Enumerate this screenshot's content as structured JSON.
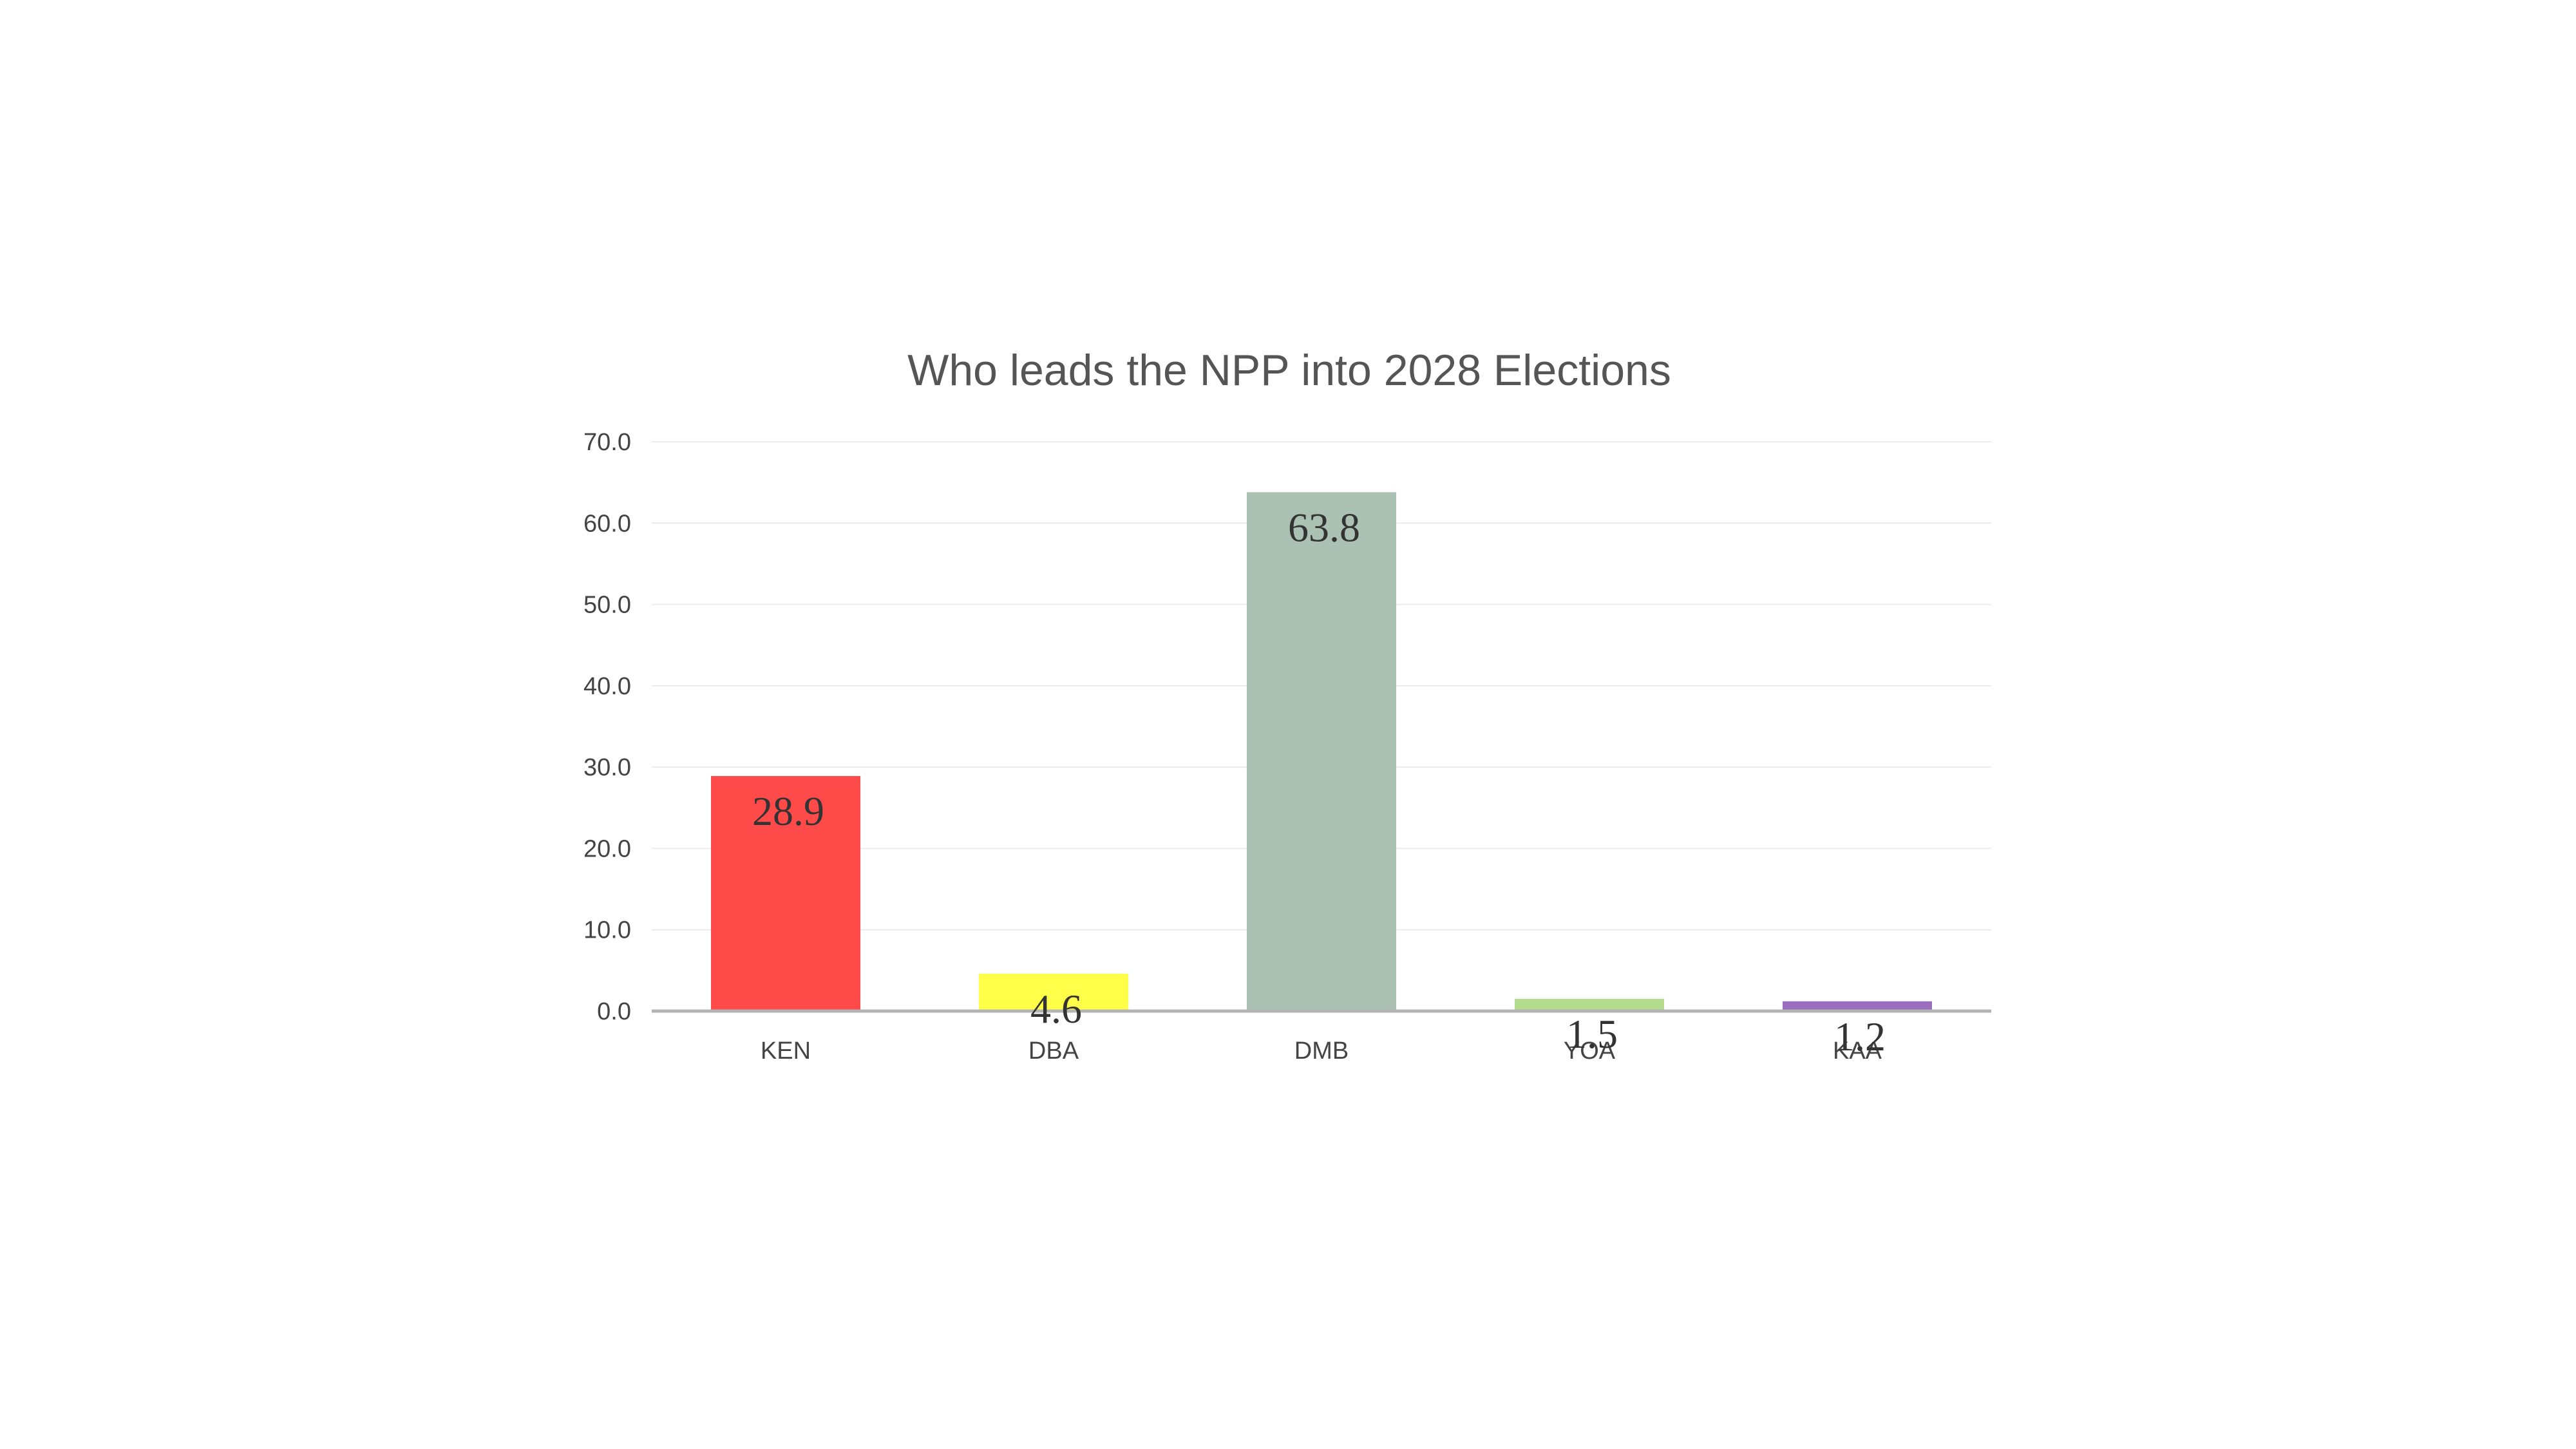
{
  "chart_data": {
    "type": "bar",
    "title": "Who leads the NPP into 2028 Elections",
    "xlabel": "",
    "ylabel": "",
    "categories": [
      "KEN",
      "DBA",
      "DMB",
      "YOA",
      "KAA"
    ],
    "values": [
      28.9,
      4.6,
      63.8,
      1.5,
      1.2
    ],
    "data_labels": [
      "28.9",
      "4.6",
      "63.8",
      "1.5",
      "1.2"
    ],
    "colors": [
      "#ff4a4a",
      "#ffff4a",
      "#abc1b3",
      "#b3dc8c",
      "#9b6ec0"
    ],
    "ylim": [
      0,
      70
    ],
    "yticks": [
      0,
      10,
      20,
      30,
      40,
      50,
      60,
      70
    ],
    "ytick_labels": [
      "0.0",
      "10.0",
      "20.0",
      "30.0",
      "40.0",
      "50.0",
      "60.0",
      "70.0"
    ],
    "grid": true,
    "legend": "none"
  }
}
